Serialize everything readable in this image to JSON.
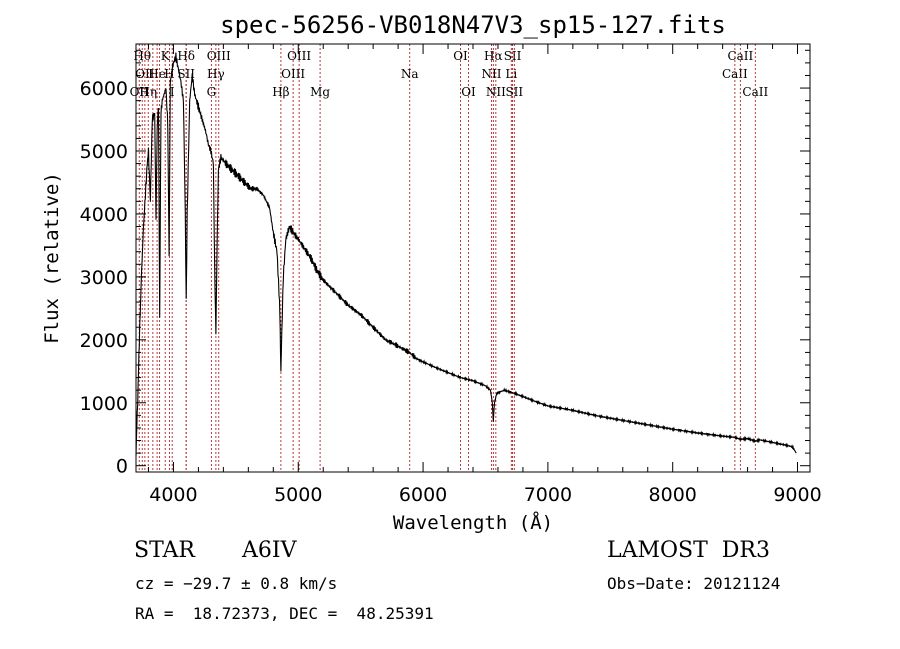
{
  "chart_data": {
    "type": "line",
    "title": "spec-56256-VB018N47V3_sp15-127.fits",
    "xlabel": "Wavelength (Å)",
    "ylabel": "Flux (relative)",
    "xlim": [
      3700,
      9100
    ],
    "ylim": [
      -100,
      6700
    ],
    "xticks": [
      4000,
      5000,
      6000,
      7000,
      8000,
      9000
    ],
    "yticks": [
      0,
      1000,
      2000,
      3000,
      4000,
      5000,
      6000
    ],
    "series": [
      {
        "name": "spectrum",
        "x": [
          3700,
          3710,
          3720,
          3730,
          3745,
          3760,
          3775,
          3790,
          3800,
          3815,
          3830,
          3850,
          3860,
          3870,
          3880,
          3890,
          3900,
          3910,
          3925,
          3940,
          3955,
          3965,
          3975,
          3990,
          4000,
          4020,
          4040,
          4060,
          4080,
          4095,
          4102,
          4110,
          4130,
          4150,
          4170,
          4200,
          4230,
          4260,
          4280,
          4300,
          4320,
          4330,
          4340,
          4350,
          4360,
          4380,
          4420,
          4470,
          4520,
          4570,
          4620,
          4670,
          4720,
          4770,
          4800,
          4830,
          4850,
          4855,
          4861,
          4868,
          4880,
          4900,
          4930,
          4960,
          5000,
          5050,
          5100,
          5150,
          5200,
          5300,
          5400,
          5500,
          5600,
          5700,
          5800,
          5890,
          5950,
          6000,
          6100,
          6200,
          6300,
          6400,
          6500,
          6540,
          6555,
          6563,
          6572,
          6590,
          6650,
          6700,
          6800,
          6900,
          7000,
          7200,
          7400,
          7600,
          7800,
          8000,
          8200,
          8400,
          8500,
          8542,
          8600,
          8662,
          8700,
          8800,
          8900,
          8960,
          8990
        ],
        "values": [
          200,
          800,
          1500,
          2200,
          3100,
          3800,
          4300,
          4800,
          5000,
          4200,
          5500,
          5600,
          3900,
          5400,
          5700,
          2300,
          5600,
          5800,
          5900,
          6000,
          5400,
          3300,
          6100,
          6300,
          6400,
          6500,
          6300,
          6100,
          5800,
          4000,
          2600,
          4000,
          5800,
          6200,
          5900,
          5700,
          5500,
          5300,
          5100,
          5000,
          4800,
          3200,
          2100,
          3500,
          4700,
          4900,
          4800,
          4700,
          4600,
          4500,
          4400,
          4400,
          4300,
          4100,
          3700,
          3400,
          2600,
          2100,
          1500,
          2100,
          3000,
          3600,
          3800,
          3700,
          3600,
          3450,
          3300,
          3100,
          2950,
          2750,
          2550,
          2400,
          2200,
          2000,
          1900,
          1800,
          1700,
          1650,
          1560,
          1480,
          1400,
          1350,
          1270,
          1200,
          1000,
          700,
          1000,
          1150,
          1200,
          1170,
          1100,
          1020,
          950,
          880,
          790,
          720,
          650,
          580,
          520,
          470,
          450,
          420,
          430,
          390,
          410,
          370,
          330,
          300,
          200
        ]
      }
    ],
    "lines": [
      {
        "wl": 3726,
        "label": "OII",
        "row": 3
      },
      {
        "wl": 3750,
        "label": "Hθ",
        "row": 1
      },
      {
        "wl": 3771,
        "label": "OII",
        "row": 2
      },
      {
        "wl": 3798,
        "label": "Hη",
        "row": 3
      },
      {
        "wl": 3835,
        "label": "",
        "row": 0
      },
      {
        "wl": 3869,
        "label": "He",
        "row": 2
      },
      {
        "wl": 3889,
        "label": "",
        "row": 0
      },
      {
        "wl": 3934,
        "label": "K",
        "row": 1
      },
      {
        "wl": 3968,
        "label": "H",
        "row": 2
      },
      {
        "wl": 3990,
        "label": "I",
        "row": 3
      },
      {
        "wl": 4102,
        "label": "Hδ",
        "row": 1
      },
      {
        "wl": 4102,
        "label": "SII",
        "row": 2
      },
      {
        "wl": 4304,
        "label": "G",
        "row": 3
      },
      {
        "wl": 4340,
        "label": "Hγ",
        "row": 2
      },
      {
        "wl": 4363,
        "label": "OIII",
        "row": 1
      },
      {
        "wl": 4861,
        "label": "Hβ",
        "row": 3
      },
      {
        "wl": 4959,
        "label": "OIII",
        "row": 2
      },
      {
        "wl": 5007,
        "label": "OIII",
        "row": 1
      },
      {
        "wl": 5175,
        "label": "Mg",
        "row": 3
      },
      {
        "wl": 5893,
        "label": "Na",
        "row": 2
      },
      {
        "wl": 6300,
        "label": "OI",
        "row": 1
      },
      {
        "wl": 6364,
        "label": "OI",
        "row": 3
      },
      {
        "wl": 6548,
        "label": "NII",
        "row": 2
      },
      {
        "wl": 6563,
        "label": "Hα",
        "row": 1
      },
      {
        "wl": 6583,
        "label": "NII",
        "row": 3
      },
      {
        "wl": 6707,
        "label": "Li",
        "row": 2
      },
      {
        "wl": 6717,
        "label": "SII",
        "row": 1
      },
      {
        "wl": 6731,
        "label": "SII",
        "row": 3
      },
      {
        "wl": 8498,
        "label": "CaII",
        "row": 2
      },
      {
        "wl": 8542,
        "label": "CaII",
        "row": 1
      },
      {
        "wl": 8662,
        "label": "CaII",
        "row": 3
      }
    ]
  },
  "info": {
    "object_class": "STAR",
    "subclass": "A6IV",
    "survey": "LAMOST  DR3",
    "cz": "cz = −29.7 ± 0.8 km/s",
    "obs_date": "Obs−Date: 20121124",
    "coords": "RA =  18.72373, DEC =  48.25391"
  }
}
